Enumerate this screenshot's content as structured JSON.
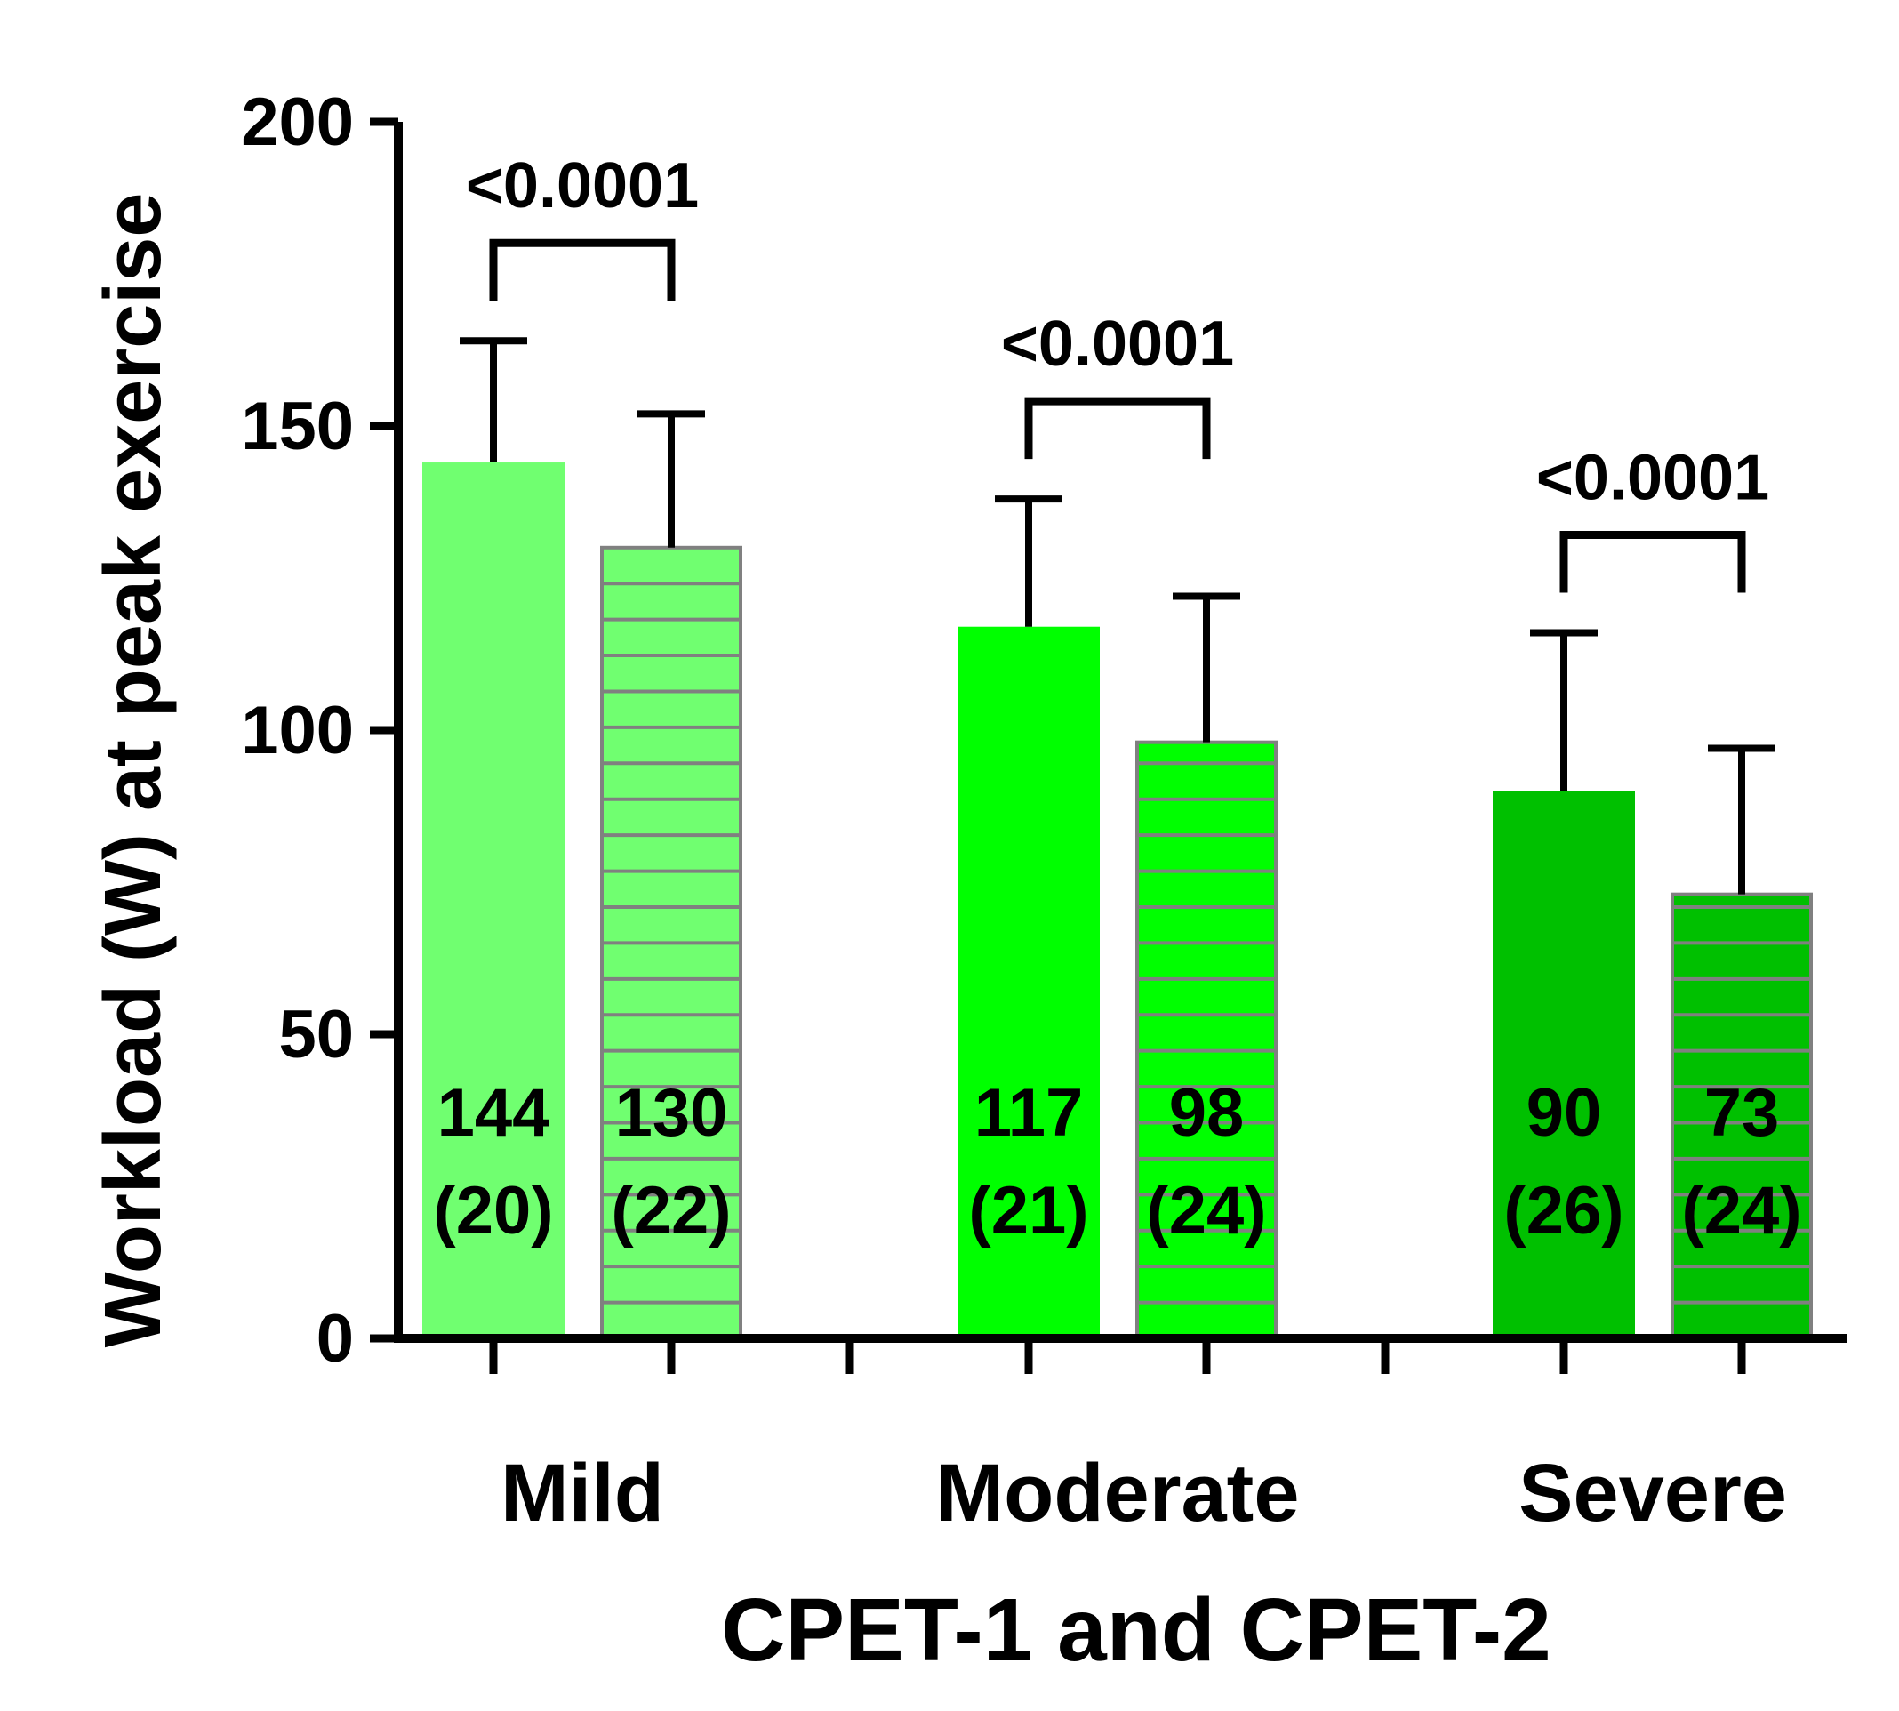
{
  "chart_data": {
    "type": "bar",
    "title": "",
    "xlabel": "CPET-1 and CPET-2",
    "ylabel": "Workload (W) at peak exercise",
    "ylim": [
      0,
      200
    ],
    "yticks": [
      0,
      50,
      100,
      150,
      200
    ],
    "ytick_labels": [
      "0",
      "50",
      "100",
      "150",
      "200"
    ],
    "grid": false,
    "categories": [
      "Mild",
      "Moderate",
      "Severe"
    ],
    "series": [
      {
        "name": "CPET-1",
        "values": [
          144,
          117,
          90
        ],
        "sd": [
          20,
          21,
          26
        ]
      },
      {
        "name": "CPET-2",
        "values": [
          130,
          98,
          73
        ],
        "sd": [
          22,
          24,
          24
        ]
      }
    ],
    "bar_labels": [
      [
        [
          "144",
          "(20)"
        ],
        [
          "130",
          "(22)"
        ]
      ],
      [
        [
          "117",
          "(21)"
        ],
        [
          "98",
          "(24)"
        ]
      ],
      [
        [
          "90",
          "(26)"
        ],
        [
          "73",
          "(24)"
        ]
      ]
    ],
    "significance": [
      "<0.0001",
      "<0.0001",
      "<0.0001"
    ],
    "colors": {
      "mild": "#70ff70",
      "moderate": "#00ff00",
      "severe": "#00c000",
      "stripe": "#808080",
      "axis": "#000000"
    }
  }
}
